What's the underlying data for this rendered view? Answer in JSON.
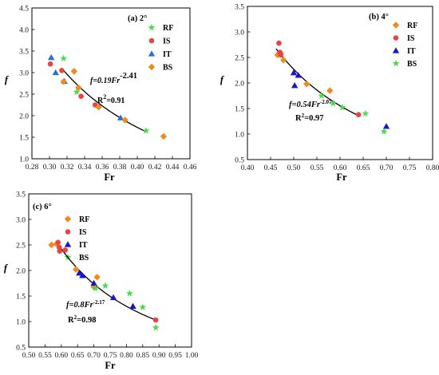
{
  "colors": {
    "RF": "#ee8a1e",
    "IS": "#e64545",
    "IT": "#2a6fd6",
    "BS": "#4cd94c",
    "IT_c": "#1616cc"
  },
  "chart_data": [
    {
      "type": "scatter",
      "panel": "(a)  2°",
      "xlabel": "Fr",
      "ylabel": "f",
      "xlim": [
        0.28,
        0.46
      ],
      "ylim": [
        1.0,
        4.5
      ],
      "xticks": [
        0.28,
        0.3,
        0.32,
        0.34,
        0.36,
        0.38,
        0.4,
        0.42,
        0.44,
        0.46
      ],
      "xtick_labels": [
        "0.28",
        "0.30",
        "0.32",
        "0.34",
        "0.36",
        "0.38",
        "0.40",
        "0.42",
        "0.44",
        "0.46"
      ],
      "yticks": [
        1.0,
        1.5,
        2.0,
        2.5,
        3.0,
        3.5,
        4.0,
        4.5
      ],
      "ytick_labels": [
        "1.0",
        "1.5",
        "2.0",
        "2.5",
        "3.0",
        "3.5",
        "4.0",
        "4.5"
      ],
      "legend_position": "top-right",
      "legend": [
        "RF",
        "IS",
        "IT",
        "BS"
      ],
      "series": [
        {
          "name": "RF",
          "marker": "star",
          "points": [
            [
              0.316,
              3.33
            ],
            [
              0.331,
              2.55
            ],
            [
              0.41,
              1.65
            ]
          ]
        },
        {
          "name": "IS",
          "marker": "circle",
          "points": [
            [
              0.301,
              3.2
            ],
            [
              0.314,
              3.05
            ],
            [
              0.336,
              2.45
            ],
            [
              0.352,
              2.25
            ]
          ]
        },
        {
          "name": "IT",
          "marker": "triangle",
          "points": [
            [
              0.302,
              3.35
            ],
            [
              0.307,
              3.0
            ],
            [
              0.317,
              2.8
            ],
            [
              0.381,
              1.95
            ]
          ]
        },
        {
          "name": "BS",
          "marker": "diamond",
          "points": [
            [
              0.328,
              3.03
            ],
            [
              0.316,
              2.79
            ],
            [
              0.333,
              2.65
            ],
            [
              0.356,
              2.2
            ],
            [
              0.386,
              1.9
            ],
            [
              0.43,
              1.52
            ]
          ]
        }
      ],
      "fit": {
        "coef": 0.19,
        "exp": -2.41,
        "xrange": [
          0.315,
          0.41
        ]
      },
      "equation": {
        "prefix": "f=0.19Fr",
        "exponent": "-2.41",
        "r2_prefix": "R",
        "r2_sup": "2",
        "r2_value": "=0.91"
      }
    },
    {
      "type": "scatter",
      "panel": "(b)  4°",
      "xlabel": "Fr",
      "ylabel": "f",
      "xlim": [
        0.4,
        0.8
      ],
      "ylim": [
        0.5,
        3.5
      ],
      "xticks": [
        0.4,
        0.45,
        0.5,
        0.55,
        0.6,
        0.65,
        0.7,
        0.75,
        0.8
      ],
      "xtick_labels": [
        "0.40",
        "0.45",
        "0.50",
        "0.55",
        "0.60",
        "0.65",
        "0.70",
        "0.75",
        "0.80"
      ],
      "yticks": [
        0.5,
        1.0,
        1.5,
        2.0,
        2.5,
        3.0,
        3.5
      ],
      "ytick_labels": [
        "0.5",
        "1.0",
        "1.5",
        "2.0",
        "2.5",
        "3.0",
        "3.5"
      ],
      "legend_position": "top-right",
      "legend": [
        "RF",
        "IS",
        "IT",
        "BS"
      ],
      "series": [
        {
          "name": "RF",
          "marker": "diamond",
          "points": [
            [
              0.465,
              2.55
            ],
            [
              0.472,
              2.58
            ],
            [
              0.478,
              2.45
            ],
            [
              0.528,
              1.98
            ],
            [
              0.578,
              1.85
            ]
          ]
        },
        {
          "name": "IS",
          "marker": "circle",
          "points": [
            [
              0.468,
              2.78
            ],
            [
              0.47,
              2.6
            ],
            [
              0.472,
              2.55
            ],
            [
              0.64,
              1.38
            ]
          ]
        },
        {
          "name": "IT",
          "marker": "triangle",
          "points": [
            [
              0.5,
              2.2
            ],
            [
              0.51,
              2.15
            ],
            [
              0.502,
              1.95
            ],
            [
              0.7,
              1.15
            ]
          ]
        },
        {
          "name": "BS",
          "marker": "star",
          "points": [
            [
              0.56,
              1.75
            ],
            [
              0.585,
              1.6
            ],
            [
              0.605,
              1.52
            ],
            [
              0.655,
              1.4
            ],
            [
              0.695,
              1.05
            ]
          ]
        }
      ],
      "fit": {
        "coef": 0.54,
        "exp": -2.07,
        "xrange": [
          0.462,
          0.64
        ]
      },
      "equation": {
        "prefix": "f=0.54Fr",
        "exponent": "-2.07",
        "r2_prefix": "R",
        "r2_sup": "2",
        "r2_value": "=0.97"
      }
    },
    {
      "type": "scatter",
      "panel": "(c)  6°",
      "xlabel": "Fr",
      "ylabel": "f",
      "xlim": [
        0.5,
        1.0
      ],
      "ylim": [
        0.5,
        3.5
      ],
      "xticks": [
        0.5,
        0.55,
        0.6,
        0.65,
        0.7,
        0.75,
        0.8,
        0.85,
        0.9,
        0.95,
        1.0
      ],
      "xtick_labels": [
        "0.50",
        "0.55",
        "0.60",
        "0.65",
        "0.70",
        "0.75",
        "0.80",
        "0.85",
        "0.90",
        "0.95",
        "1.00"
      ],
      "yticks": [
        0.5,
        1.0,
        1.5,
        2.0,
        2.5,
        3.0,
        3.5
      ],
      "ytick_labels": [
        "0.5",
        "1.0",
        "1.5",
        "2.0",
        "2.5",
        "3.0",
        "3.5"
      ],
      "legend_position": "top-right",
      "legend": [
        "RF",
        "IS",
        "IT",
        "BS"
      ],
      "series": [
        {
          "name": "RF",
          "marker": "diamond",
          "points": [
            [
              0.57,
              2.5
            ],
            [
              0.585,
              2.52
            ],
            [
              0.645,
              2.02
            ],
            [
              0.71,
              1.87
            ],
            [
              0.7,
              1.68
            ]
          ]
        },
        {
          "name": "IS",
          "marker": "circle",
          "points": [
            [
              0.59,
              2.55
            ],
            [
              0.594,
              2.45
            ],
            [
              0.595,
              2.38
            ],
            [
              0.612,
              2.4
            ],
            [
              0.89,
              1.03
            ]
          ]
        },
        {
          "name": "IT",
          "marker": "triangle",
          "points": [
            [
              0.655,
              1.95
            ],
            [
              0.665,
              1.9
            ],
            [
              0.7,
              1.75
            ],
            [
              0.76,
              1.47
            ],
            [
              0.82,
              1.3
            ]
          ]
        },
        {
          "name": "BS",
          "marker": "star",
          "points": [
            [
              0.705,
              1.65
            ],
            [
              0.735,
              1.7
            ],
            [
              0.81,
              1.55
            ],
            [
              0.85,
              1.28
            ],
            [
              0.89,
              0.88
            ]
          ]
        }
      ],
      "fit": {
        "coef": 0.8,
        "exp": -2.17,
        "xrange": [
          0.585,
          0.89
        ]
      },
      "equation": {
        "prefix": "f=0.8Fr",
        "exponent": "-2.17",
        "r2_prefix": "R",
        "r2_sup": "2",
        "r2_value": "=0.98"
      }
    }
  ]
}
